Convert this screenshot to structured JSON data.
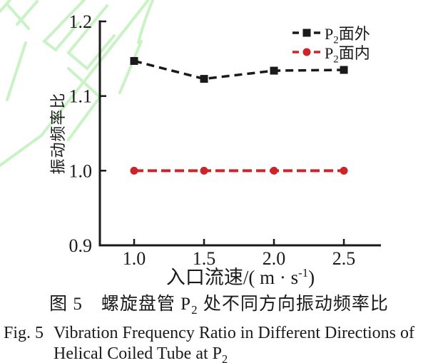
{
  "colors": {
    "axis": "#1a1a1a",
    "out_of_plane_black": "#1a1a1a",
    "in_plane_red": "#cc2428",
    "watermark_green": "#c9f3c5"
  },
  "chart_data": {
    "type": "line",
    "x": [
      1.0,
      1.5,
      2.0,
      2.5
    ],
    "series": [
      {
        "name": "P₂面外",
        "name_parts": {
          "pre": "P",
          "sub": "2",
          "post": "面外"
        },
        "values": [
          1.147,
          1.123,
          1.134,
          1.135
        ],
        "color": "#1a1a1a",
        "marker": "square",
        "linestyle": "dashed"
      },
      {
        "name": "P₂面内",
        "name_parts": {
          "pre": "P",
          "sub": "2",
          "post": "面内"
        },
        "values": [
          1.0,
          1.0,
          1.0,
          1.0
        ],
        "color": "#cc2428",
        "marker": "circle",
        "linestyle": "dashed"
      }
    ],
    "xlabel": "入口流速/( m · s⁻¹)",
    "xlabel_parts": {
      "pre": "入口流速/( m · s",
      "sup": "-1",
      "post": ")"
    },
    "ylabel": "振动频率比",
    "xlim": [
      0.755,
      2.765
    ],
    "ylim": [
      0.9,
      1.2
    ],
    "xticks": [
      {
        "v": 1.0,
        "label": "1.0"
      },
      {
        "v": 1.5,
        "label": "1.5"
      },
      {
        "v": 2.0,
        "label": "2.0"
      },
      {
        "v": 2.5,
        "label": "2.5"
      }
    ],
    "yticks": [
      {
        "v": 0.9,
        "label": "0.9"
      },
      {
        "v": 1.0,
        "label": "1.0"
      },
      {
        "v": 1.1,
        "label": "1.1"
      },
      {
        "v": 1.2,
        "label": "1.2"
      }
    ],
    "grid": false,
    "legend_position": "upper-right-inside"
  },
  "caption": {
    "cn": "图 5　螺旋盘管 P₂ 处不同方向振动频率比",
    "cn_parts": {
      "pre": "图 5　螺旋盘管 P",
      "sub": "2",
      "post": " 处不同方向振动频率比"
    },
    "en_label": "Fig. 5",
    "en_line1": "Vibration Frequency Ratio in Different Directions of",
    "en_line2_parts": {
      "pre": "Helical Coiled Tube at P",
      "sub": "2"
    },
    "en": "Fig. 5 Vibration Frequency Ratio in Different Directions of Helical Coiled Tube at P₂"
  }
}
